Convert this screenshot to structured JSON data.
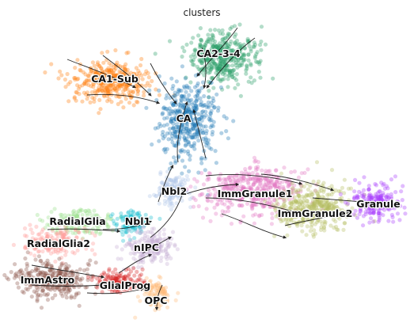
{
  "chart_data": {
    "type": "scatter",
    "title": "clusters",
    "xlabel": "",
    "ylabel": "",
    "axes_visible": false,
    "grid": false,
    "legend": "on data",
    "overlay": "velocity streamlines (black arrows)",
    "clusters": [
      {
        "name": "CA2-3-4",
        "color": "#279e68"
      },
      {
        "name": "CA1-Sub",
        "color": "#ff7f0e"
      },
      {
        "name": "CA",
        "color": "#1f77b4"
      },
      {
        "name": "Nbl2",
        "color": "#aec7e8"
      },
      {
        "name": "ImmGranule1",
        "color": "#e377c2"
      },
      {
        "name": "ImmGranule2",
        "color": "#b5bd61"
      },
      {
        "name": "Granule",
        "color": "#aa40fc"
      },
      {
        "name": "RadialGlia",
        "color": "#98df8a"
      },
      {
        "name": "Nbl1",
        "color": "#17becf"
      },
      {
        "name": "RadialGlia2",
        "color": "#ff9896"
      },
      {
        "name": "nIPC",
        "color": "#c5b0d5"
      },
      {
        "name": "ImmAstro",
        "color": "#8c564b"
      },
      {
        "name": "GlialProg",
        "color": "#d62728"
      },
      {
        "name": "OPC",
        "color": "#ffbb78"
      }
    ]
  }
}
